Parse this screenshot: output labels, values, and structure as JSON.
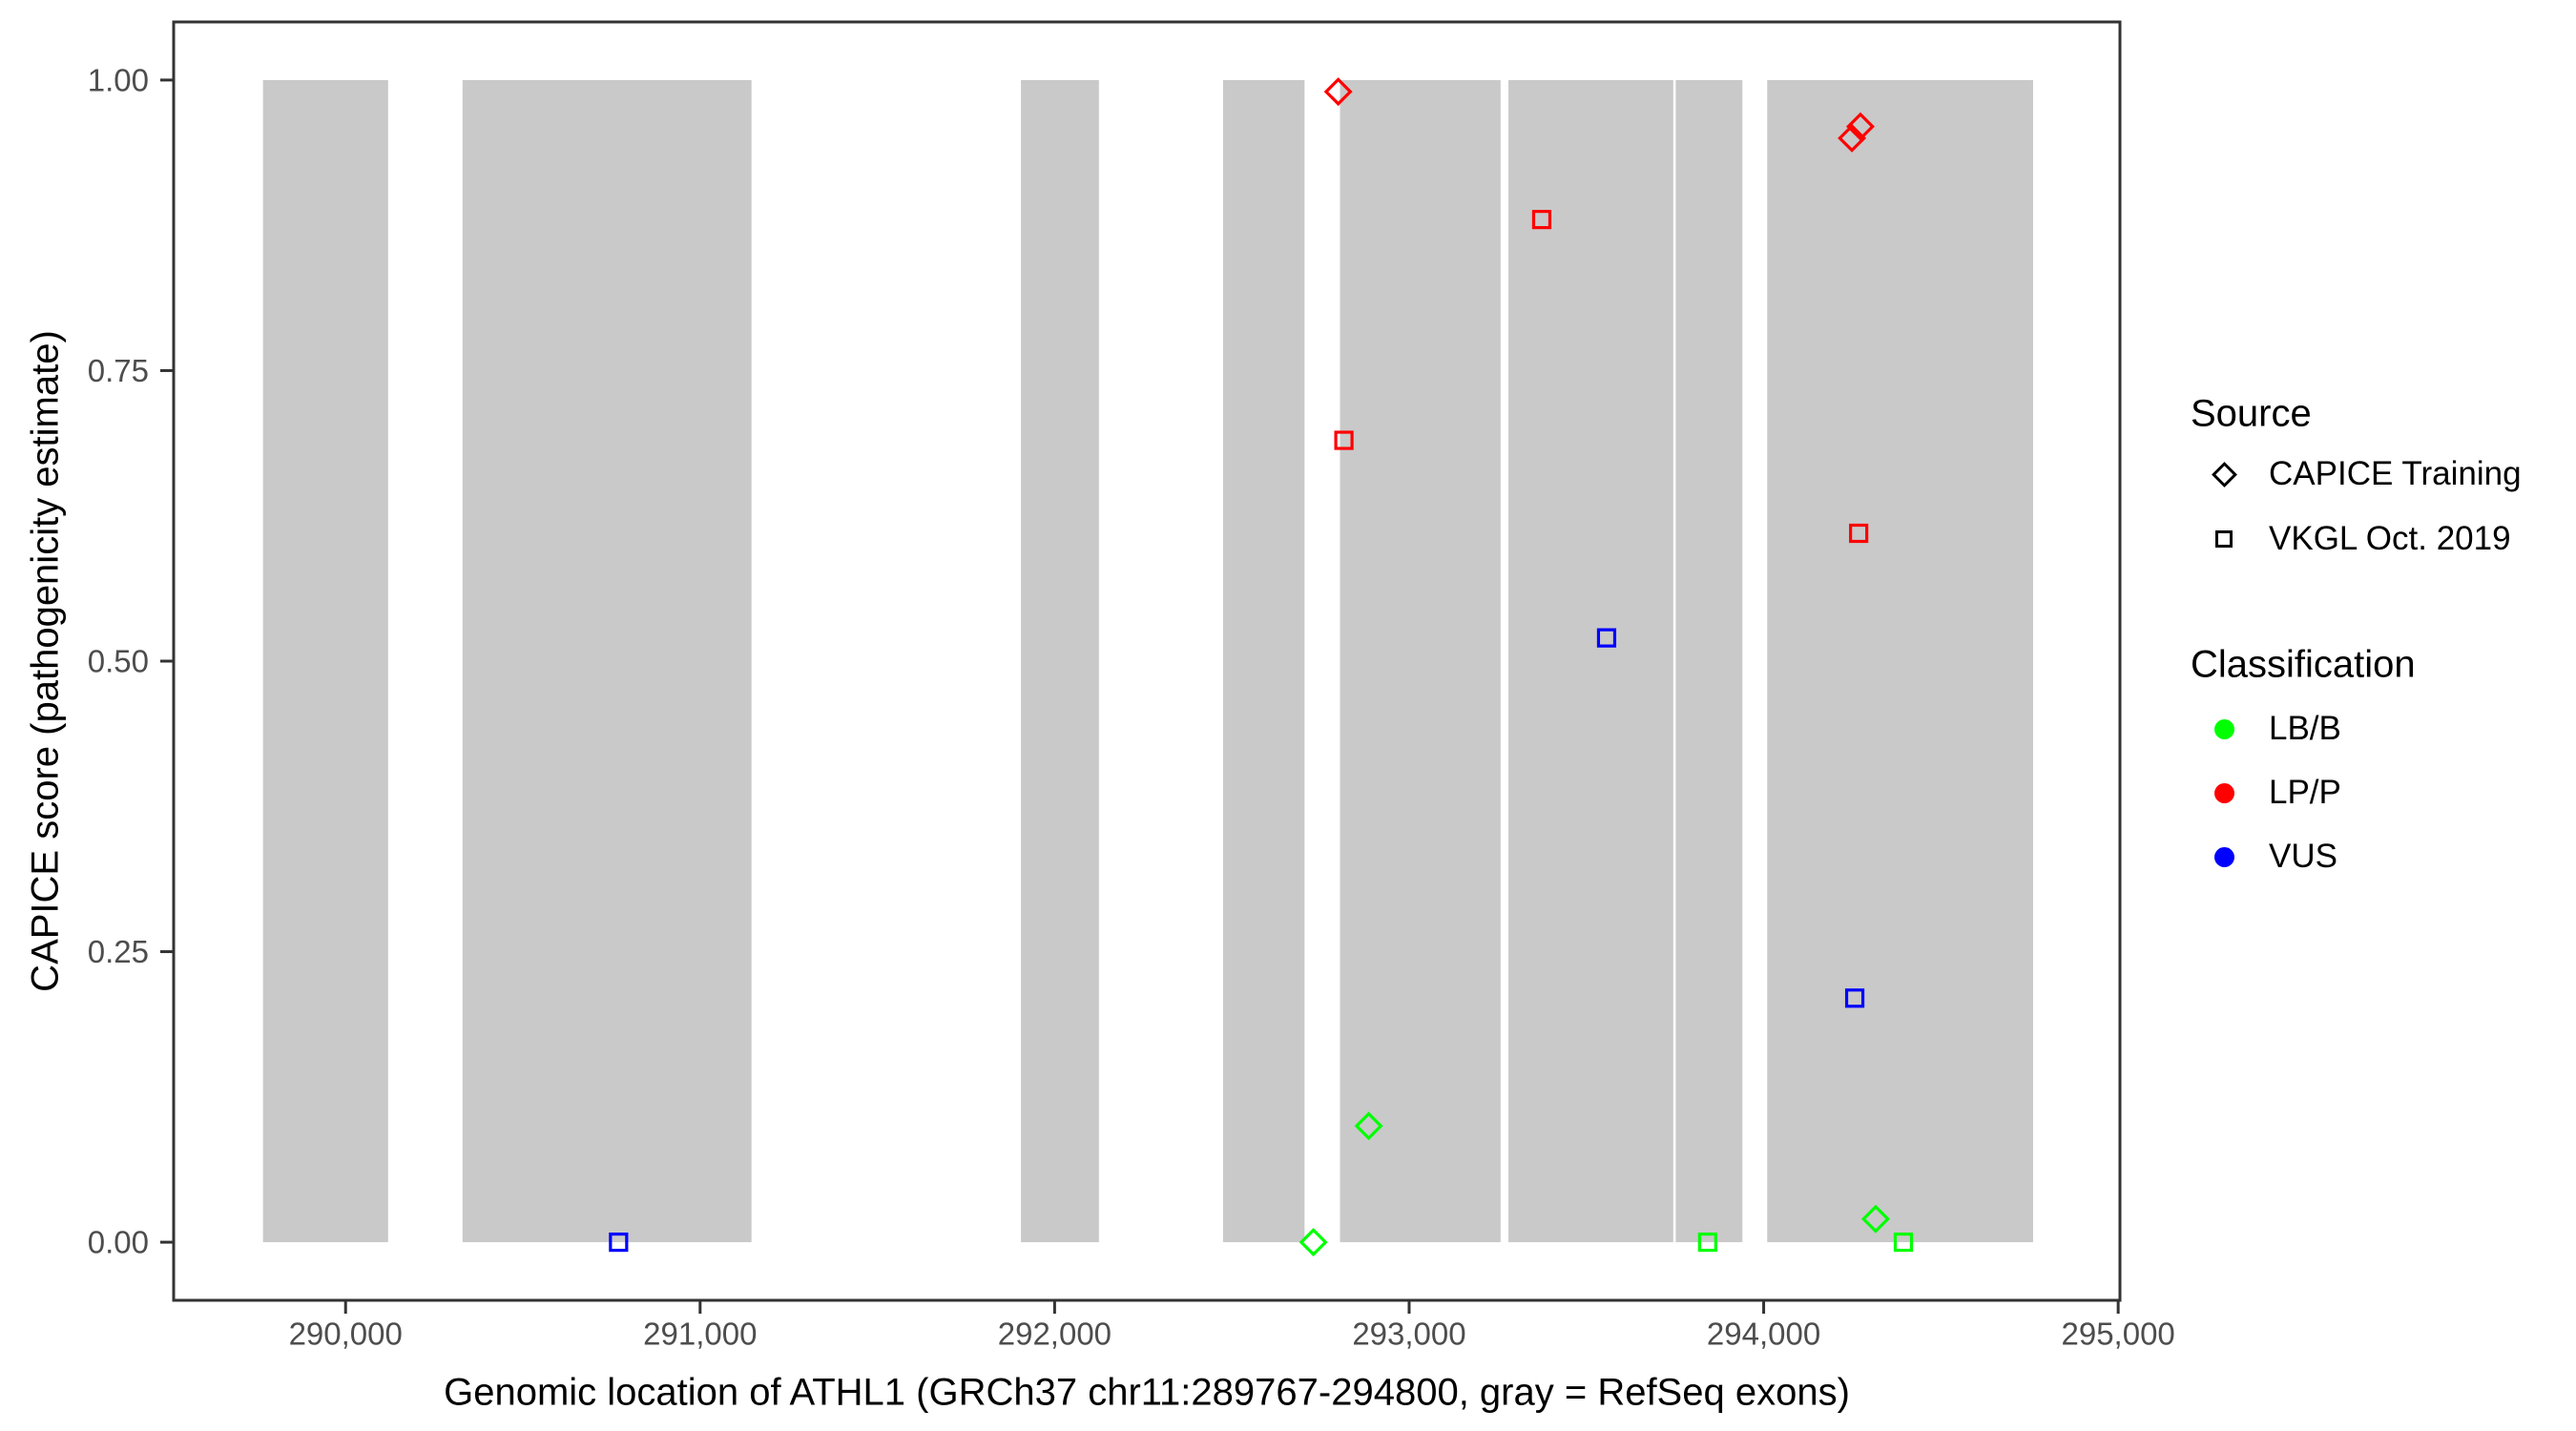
{
  "legend": {
    "source": {
      "title": "Source",
      "items": [
        {
          "label": "CAPICE Training",
          "shape": "diamond"
        },
        {
          "label": "VKGL Oct. 2019",
          "shape": "square"
        }
      ]
    },
    "classification": {
      "title": "Classification",
      "items": [
        {
          "label": "LB/B",
          "color": "#00FF00"
        },
        {
          "label": "LP/P",
          "color": "#FF0000"
        },
        {
          "label": "VUS",
          "color": "#0000FF"
        }
      ]
    }
  },
  "chart_data": {
    "type": "scatter",
    "title": "",
    "xlabel": "Genomic location of ATHL1 (GRCh37 chr11:289767-294800, gray = RefSeq exons)",
    "ylabel": "CAPICE score (pathogenicity estimate)",
    "x_domain": [
      289515,
      295005
    ],
    "y_domain": [
      -0.05,
      1.05
    ],
    "grid": false,
    "legend_position": "right",
    "x_ticks": [
      {
        "value": 290000,
        "label": "290,000"
      },
      {
        "value": 291000,
        "label": "291,000"
      },
      {
        "value": 292000,
        "label": "292,000"
      },
      {
        "value": 293000,
        "label": "293,000"
      },
      {
        "value": 294000,
        "label": "294,000"
      },
      {
        "value": 295000,
        "label": "295,000"
      }
    ],
    "y_ticks": [
      {
        "value": 0.0,
        "label": "0.00"
      },
      {
        "value": 0.25,
        "label": "0.25"
      },
      {
        "value": 0.5,
        "label": "0.50"
      },
      {
        "value": 0.75,
        "label": "0.75"
      },
      {
        "value": 1.0,
        "label": "1.00"
      }
    ],
    "exon_fill": "#C9C9C9",
    "exon_score_span": [
      0,
      1
    ],
    "exons": [
      [
        289767,
        290120
      ],
      [
        290330,
        291145
      ],
      [
        291905,
        292125
      ],
      [
        292475,
        292705
      ],
      [
        292805,
        293258
      ],
      [
        293280,
        293745
      ],
      [
        293752,
        293940
      ],
      [
        294010,
        294760
      ]
    ],
    "classification_colors": {
      "LB/B": "#00FF00",
      "LP/P": "#FF0000",
      "VUS": "#0000FF"
    },
    "source_shapes": {
      "CAPICE Training": "diamond",
      "VKGL Oct. 2019": "square"
    },
    "points": [
      {
        "position": 290770,
        "score": 0.0,
        "source": "VKGL Oct. 2019",
        "classification": "VUS"
      },
      {
        "position": 292800,
        "score": 0.99,
        "source": "CAPICE Training",
        "classification": "LP/P"
      },
      {
        "position": 292816,
        "score": 0.69,
        "source": "VKGL Oct. 2019",
        "classification": "LP/P"
      },
      {
        "position": 292730,
        "score": 0.0,
        "source": "CAPICE Training",
        "classification": "LB/B"
      },
      {
        "position": 292886,
        "score": 0.1,
        "source": "CAPICE Training",
        "classification": "LB/B"
      },
      {
        "position": 293374,
        "score": 0.88,
        "source": "VKGL Oct. 2019",
        "classification": "LP/P"
      },
      {
        "position": 293557,
        "score": 0.52,
        "source": "VKGL Oct. 2019",
        "classification": "VUS"
      },
      {
        "position": 293842,
        "score": 0.0,
        "source": "VKGL Oct. 2019",
        "classification": "LB/B"
      },
      {
        "position": 294249,
        "score": 0.95,
        "source": "CAPICE Training",
        "classification": "LP/P"
      },
      {
        "position": 294273,
        "score": 0.96,
        "source": "CAPICE Training",
        "classification": "LP/P"
      },
      {
        "position": 294268,
        "score": 0.61,
        "source": "VKGL Oct. 2019",
        "classification": "LP/P"
      },
      {
        "position": 294257,
        "score": 0.21,
        "source": "VKGL Oct. 2019",
        "classification": "VUS"
      },
      {
        "position": 294316,
        "score": 0.02,
        "source": "CAPICE Training",
        "classification": "LB/B"
      },
      {
        "position": 294394,
        "score": 0.0,
        "source": "VKGL Oct. 2019",
        "classification": "LB/B"
      }
    ]
  }
}
